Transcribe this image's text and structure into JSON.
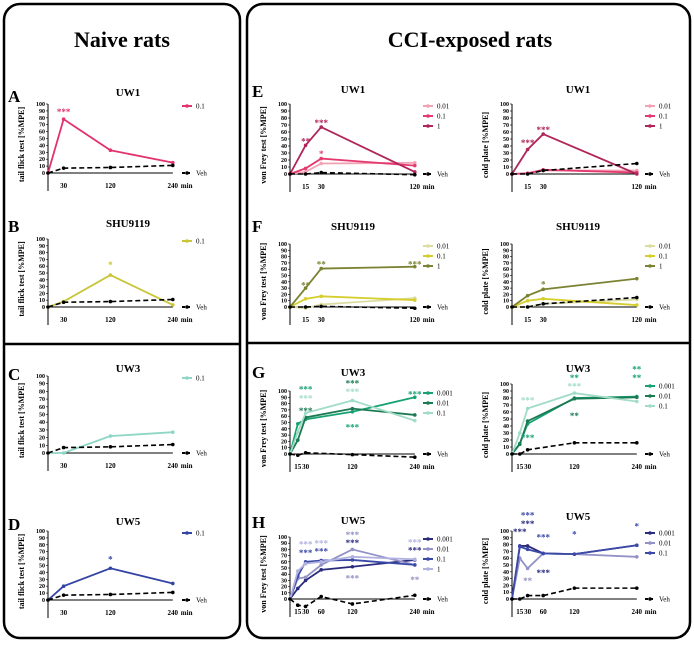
{
  "headers": {
    "naive": "Naive rats",
    "cci": "CCI-exposed rats"
  },
  "chart_data": [
    {
      "type": "line",
      "panel": "A",
      "title": "UW1",
      "ylabel": "tail flick test  [%MPE]",
      "ylim": [
        0,
        100
      ],
      "x": [
        0,
        30,
        120,
        240
      ],
      "x_ticks": [
        "30",
        "120",
        "240"
      ],
      "x_unit": "min",
      "series": [
        {
          "name": "0.1",
          "color": "#e2336c",
          "values": [
            0,
            78,
            33,
            15
          ]
        },
        {
          "name": "Veh",
          "color": "#000000",
          "dashed": true,
          "values": [
            0,
            7,
            8,
            11
          ]
        }
      ],
      "annotations": [
        {
          "x": 30,
          "y": 90,
          "text": "***",
          "color": "#e2336c"
        }
      ]
    },
    {
      "type": "line",
      "panel": "B",
      "title": "SHU9119",
      "ylabel": "tail flick test  [%MPE]",
      "ylim": [
        0,
        100
      ],
      "x": [
        0,
        30,
        120,
        240
      ],
      "x_ticks": [
        "30",
        "120",
        "240"
      ],
      "x_unit": "min",
      "series": [
        {
          "name": "0.1",
          "color": "#c9c63a",
          "values": [
            0,
            8,
            47,
            3
          ]
        },
        {
          "name": "Veh",
          "color": "#000000",
          "dashed": true,
          "values": [
            0,
            7,
            8,
            11
          ]
        }
      ],
      "annotations": [
        {
          "x": 120,
          "y": 63,
          "text": "*",
          "color": "#c9c63a"
        }
      ]
    },
    {
      "type": "line",
      "panel": "C",
      "title": "UW3",
      "ylabel": "tail flick test  [%MPE]",
      "ylim": [
        0,
        100
      ],
      "x": [
        0,
        30,
        120,
        240
      ],
      "x_ticks": [
        "30",
        "120",
        "240"
      ],
      "x_unit": "min",
      "series": [
        {
          "name": "0.1",
          "color": "#8fd6c6",
          "values": [
            0,
            0,
            22,
            27
          ]
        },
        {
          "name": "Veh",
          "color": "#000000",
          "dashed": true,
          "values": [
            0,
            7,
            8,
            11
          ]
        }
      ],
      "annotations": []
    },
    {
      "type": "line",
      "panel": "D",
      "title": "UW5",
      "ylabel": "tail flick test  [%MPE]",
      "ylim": [
        0,
        100
      ],
      "x": [
        0,
        30,
        120,
        240
      ],
      "x_ticks": [
        "30",
        "120",
        "240"
      ],
      "x_unit": "min",
      "series": [
        {
          "name": "0.1",
          "color": "#3444a4",
          "values": [
            0,
            20,
            46,
            24
          ]
        },
        {
          "name": "Veh",
          "color": "#000000",
          "dashed": true,
          "values": [
            0,
            7,
            8,
            11
          ]
        }
      ],
      "annotations": [
        {
          "x": 120,
          "y": 60,
          "text": "*",
          "color": "#3444a4"
        }
      ]
    },
    {
      "type": "line",
      "panel": "E",
      "title": "UW1",
      "ylabel": "von Frey test [%MPE]",
      "ylim": [
        0,
        100
      ],
      "x": [
        0,
        15,
        30,
        120
      ],
      "x_ticks": [
        "15",
        "30",
        "120"
      ],
      "x_unit": "min",
      "series": [
        {
          "name": "0.01",
          "color": "#f2a2b4",
          "values": [
            0,
            3,
            15,
            16
          ]
        },
        {
          "name": "0.1",
          "color": "#e53a70",
          "values": [
            0,
            8,
            22,
            12
          ]
        },
        {
          "name": "1",
          "color": "#b0255a",
          "values": [
            0,
            41,
            67,
            3
          ]
        },
        {
          "name": "Veh",
          "color": "#000000",
          "dashed": true,
          "values": [
            0,
            0,
            2,
            -1
          ]
        }
      ],
      "annotations": [
        {
          "x": 15,
          "y": 48,
          "text": "**",
          "color": "#b0255a"
        },
        {
          "x": 30,
          "y": 74,
          "text": "***",
          "color": "#b0255a"
        },
        {
          "x": 30,
          "y": 30,
          "text": "*",
          "color": "#e53a70"
        }
      ]
    },
    {
      "type": "line",
      "panel": "E",
      "title": "UW1",
      "ylabel": "cold plate [%MPE]",
      "ylim": [
        0,
        100
      ],
      "x": [
        0,
        15,
        30,
        120
      ],
      "x_ticks": [
        "15",
        "30",
        "120"
      ],
      "x_unit": "min",
      "series": [
        {
          "name": "0.01",
          "color": "#f2a2b4",
          "values": [
            0,
            1,
            5,
            5
          ]
        },
        {
          "name": "0.1",
          "color": "#e53a70",
          "values": [
            0,
            1,
            6,
            2
          ]
        },
        {
          "name": "1",
          "color": "#b0255a",
          "values": [
            0,
            35,
            57,
            0
          ]
        },
        {
          "name": "Veh",
          "color": "#000000",
          "dashed": true,
          "values": [
            0,
            0,
            5,
            15
          ]
        }
      ],
      "annotations": [
        {
          "x": 15,
          "y": 46,
          "text": "***",
          "color": "#b0255a"
        },
        {
          "x": 30,
          "y": 64,
          "text": "***",
          "color": "#b0255a"
        }
      ]
    },
    {
      "type": "line",
      "panel": "F",
      "title": "SHU9119",
      "ylabel": "von Frey test [%MPE]",
      "ylim": [
        0,
        100
      ],
      "x": [
        0,
        15,
        30,
        120
      ],
      "x_ticks": [
        "15",
        "30",
        "120"
      ],
      "x_unit": "min",
      "series": [
        {
          "name": "0.01",
          "color": "#dcdca2",
          "values": [
            0,
            -2,
            4,
            14
          ]
        },
        {
          "name": "0.1",
          "color": "#d6ce2c",
          "values": [
            0,
            13,
            17,
            11
          ]
        },
        {
          "name": "1",
          "color": "#7b8232",
          "values": [
            0,
            30,
            61,
            64
          ]
        },
        {
          "name": "Veh",
          "color": "#000000",
          "dashed": true,
          "values": [
            0,
            0,
            1,
            -2
          ]
        }
      ],
      "annotations": [
        {
          "x": 15,
          "y": 36,
          "text": "**",
          "color": "#7b8232"
        },
        {
          "x": 30,
          "y": 69,
          "text": "**",
          "color": "#7b8232"
        },
        {
          "x": 120,
          "y": 69,
          "text": "***",
          "color": "#7b8232"
        }
      ]
    },
    {
      "type": "line",
      "panel": "F",
      "title": "SHU9119",
      "ylabel": "cold plate [%MPE]",
      "ylim": [
        0,
        100
      ],
      "x": [
        0,
        15,
        30,
        120
      ],
      "x_ticks": [
        "15",
        "30",
        "120"
      ],
      "x_unit": "min",
      "series": [
        {
          "name": "0.01",
          "color": "#dcdca2",
          "values": [
            0,
            0,
            5,
            12
          ]
        },
        {
          "name": "0.1",
          "color": "#d6ce2c",
          "values": [
            0,
            10,
            13,
            3
          ]
        },
        {
          "name": "1",
          "color": "#7b8232",
          "values": [
            0,
            18,
            28,
            45
          ]
        },
        {
          "name": "Veh",
          "color": "#000000",
          "dashed": true,
          "values": [
            0,
            0,
            5,
            15
          ]
        }
      ],
      "annotations": [
        {
          "x": 30,
          "y": 37,
          "text": "*",
          "color": "#7b8232"
        }
      ]
    },
    {
      "type": "line",
      "panel": "G",
      "title": "UW3",
      "ylabel": "von Frey test [%MPE]",
      "ylim": [
        0,
        100
      ],
      "x": [
        0,
        15,
        30,
        120,
        240
      ],
      "x_ticks": [
        "15",
        "30",
        "120",
        "240"
      ],
      "x_unit": "min",
      "series": [
        {
          "name": "0.001",
          "color": "#17a274",
          "values": [
            0,
            48,
            55,
            67,
            90
          ]
        },
        {
          "name": "0.01",
          "color": "#1b7a52",
          "values": [
            0,
            22,
            58,
            72,
            62
          ]
        },
        {
          "name": "0.1",
          "color": "#a2dcc8",
          "values": [
            0,
            35,
            65,
            85,
            53
          ]
        },
        {
          "name": "Veh",
          "color": "#000000",
          "dashed": true,
          "values": [
            0,
            -2,
            2,
            -1,
            -5
          ]
        }
      ],
      "annotations": [
        {
          "x": 30,
          "y": 90,
          "text": "***",
          "color": "#a2dcc8"
        },
        {
          "x": 30,
          "y": 80,
          "text": "***",
          "color": "#17a274"
        },
        {
          "x": 30,
          "y": 70,
          "text": "***",
          "color": "#1b7a52"
        },
        {
          "x": 120,
          "y": 100,
          "text": "***",
          "color": "#a2dcc8"
        },
        {
          "x": 120,
          "y": 90,
          "text": "***",
          "color": "#1b7a52"
        },
        {
          "x": 120,
          "y": 44,
          "text": "***",
          "color": "#17a274"
        },
        {
          "x": 240,
          "y": 96,
          "text": "***",
          "color": "#17a274"
        }
      ]
    },
    {
      "type": "line",
      "panel": "G",
      "title": "UW3",
      "ylabel": "cold plate [%MPE]",
      "ylim": [
        0,
        100
      ],
      "x": [
        0,
        15,
        30,
        120,
        240
      ],
      "x_ticks": [
        "15",
        "30",
        "120",
        "240"
      ],
      "x_unit": "min",
      "series": [
        {
          "name": "0.001",
          "color": "#17a274",
          "values": [
            0,
            15,
            43,
            80,
            82
          ]
        },
        {
          "name": "0.01",
          "color": "#1b7a52",
          "values": [
            0,
            14,
            47,
            79,
            81
          ]
        },
        {
          "name": "0.1",
          "color": "#a2dcc8",
          "values": [
            0,
            30,
            65,
            87,
            75
          ]
        },
        {
          "name": "Veh",
          "color": "#000000",
          "dashed": true,
          "values": [
            0,
            0,
            6,
            16,
            16
          ]
        }
      ],
      "annotations": [
        {
          "x": 30,
          "y": 78,
          "text": "***",
          "color": "#a2dcc8"
        },
        {
          "x": 120,
          "y": 98,
          "text": "***",
          "color": "#a2dcc8"
        },
        {
          "x": 120,
          "y": 90,
          "text": "**",
          "color": "#17a274"
        },
        {
          "x": 120,
          "y": 56,
          "text": "**",
          "color": "#1b7a52"
        },
        {
          "x": 240,
          "y": 110,
          "text": "**",
          "color": "#17a274"
        },
        {
          "x": 240,
          "y": 102,
          "text": "**",
          "color": "#17a274"
        },
        {
          "x": 30,
          "y": 24,
          "text": "***",
          "color": "#17a274"
        }
      ]
    },
    {
      "type": "line",
      "panel": "H",
      "title": "UW5",
      "ylabel": "von Frey test [%MPE]",
      "ylim": [
        0,
        100
      ],
      "x": [
        0,
        15,
        30,
        60,
        120,
        240
      ],
      "x_ticks": [
        "15",
        "30",
        "60",
        "120",
        "240"
      ],
      "x_unit": "min",
      "series": [
        {
          "name": "0.001",
          "color": "#2b2b7e",
          "values": [
            0,
            17,
            30,
            47,
            52,
            63
          ]
        },
        {
          "name": "0.01",
          "color": "#9292c6",
          "values": [
            0,
            33,
            35,
            55,
            80,
            55
          ]
        },
        {
          "name": "0.1",
          "color": "#3b4aa8",
          "values": [
            0,
            37,
            60,
            62,
            63,
            55
          ]
        },
        {
          "name": "1",
          "color": "#b2b2e0",
          "values": [
            0,
            45,
            57,
            60,
            68,
            64
          ]
        },
        {
          "name": "Veh",
          "color": "#000000",
          "dashed": true,
          "values": [
            0,
            -10,
            -12,
            4,
            -8,
            6
          ]
        }
      ],
      "annotations": [
        {
          "x": 30,
          "y": 76,
          "text": "***",
          "color": "#3b4aa8"
        },
        {
          "x": 30,
          "y": 65,
          "text": "***",
          "color": "#b2b2e0"
        },
        {
          "x": 60,
          "y": 78,
          "text": "***",
          "color": "#3b4aa8"
        },
        {
          "x": 60,
          "y": 67,
          "text": "***",
          "color": "#b2b2e0"
        },
        {
          "x": 120,
          "y": 92,
          "text": "***",
          "color": "#2b2b7e"
        },
        {
          "x": 120,
          "y": 84,
          "text": "***",
          "color": "#9292c6"
        },
        {
          "x": 120,
          "y": 35,
          "text": "***",
          "color": "#9292c6"
        },
        {
          "x": 240,
          "y": 80,
          "text": "***",
          "color": "#2b2b7e"
        },
        {
          "x": 240,
          "y": 72,
          "text": "***",
          "color": "#b2b2e0"
        },
        {
          "x": 240,
          "y": 32,
          "text": "**",
          "color": "#9292c6"
        }
      ]
    },
    {
      "type": "line",
      "panel": "H",
      "title": "UW5",
      "ylabel": "cold plate [%MPE]",
      "ylim": [
        0,
        100
      ],
      "x": [
        0,
        15,
        30,
        60,
        120,
        240
      ],
      "x_ticks": [
        "15",
        "30",
        "60",
        "120",
        "240"
      ],
      "x_unit": "min",
      "series": [
        {
          "name": "0.001",
          "color": "#2b2b7e",
          "values": [
            0,
            78,
            78,
            67,
            66,
            79
          ]
        },
        {
          "name": "0.01",
          "color": "#9292c6",
          "values": [
            0,
            60,
            45,
            67,
            66,
            62
          ]
        },
        {
          "name": "0.1",
          "color": "#3b4aa8",
          "values": [
            0,
            77,
            73,
            67,
            66,
            79
          ]
        },
        {
          "name": "Veh",
          "color": "#000000",
          "dashed": true,
          "values": [
            0,
            0,
            5,
            5,
            16,
            16
          ]
        }
      ],
      "annotations": [
        {
          "x": 15,
          "y": 100,
          "text": "***",
          "color": "#2b2b7e"
        },
        {
          "x": 30,
          "y": 112,
          "text": "***",
          "color": "#2b2b7e"
        },
        {
          "x": 30,
          "y": 104,
          "text": "***",
          "color": "#3b4aa8"
        },
        {
          "x": 60,
          "y": 92,
          "text": "***",
          "color": "#3b4aa8"
        },
        {
          "x": 60,
          "y": 40,
          "text": "***",
          "color": "#2b2b7e"
        },
        {
          "x": 120,
          "y": 96,
          "text": "*",
          "color": "#3b4aa8"
        },
        {
          "x": 240,
          "y": 108,
          "text": "*",
          "color": "#3b4aa8"
        },
        {
          "x": 30,
          "y": 28,
          "text": "**",
          "color": "#9292c6"
        }
      ]
    }
  ]
}
